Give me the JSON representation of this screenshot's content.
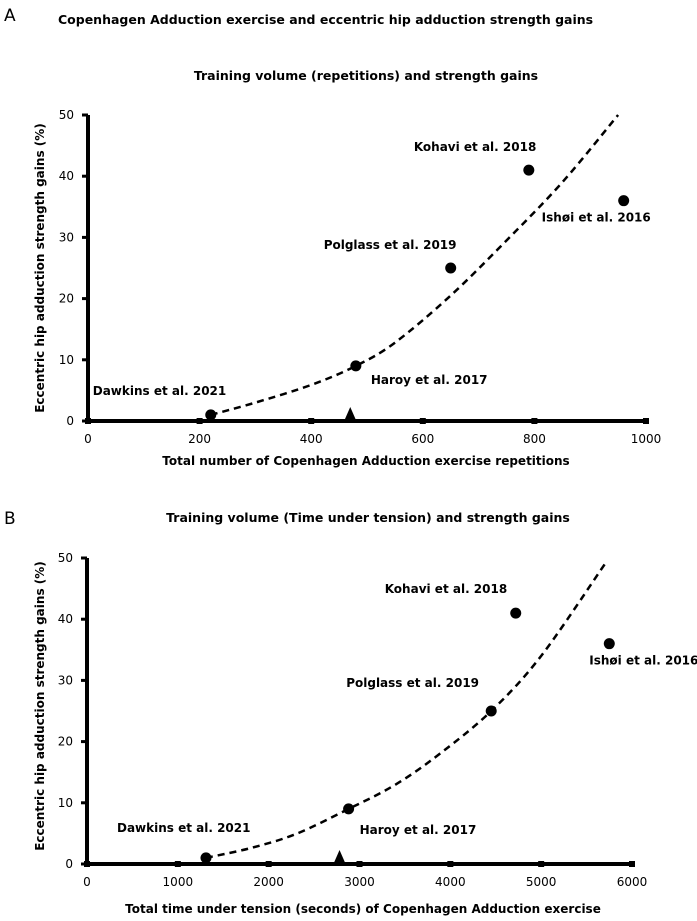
{
  "figure_title": "Copenhagen Adduction exercise and eccentric hip adduction strength gains",
  "chart_data": [
    {
      "type": "scatter",
      "panel_letter": "A",
      "title": "Training volume (repetitions) and strength gains",
      "xlabel": "Total number of Copenhagen Adduction exercise repetitions",
      "ylabel": "Eccentric hip adduction strength gains (%)",
      "xlim": [
        0,
        1000
      ],
      "ylim": [
        0,
        50
      ],
      "xticks": [
        0,
        200,
        400,
        600,
        800,
        1000
      ],
      "yticks": [
        0,
        10,
        20,
        30,
        40,
        50
      ],
      "grid": false,
      "points": [
        {
          "x": 220,
          "y": 1,
          "label": "Dawkins et al. 2021"
        },
        {
          "x": 480,
          "y": 9,
          "label": "Haroy et al. 2017"
        },
        {
          "x": 650,
          "y": 25,
          "label": "Polglass et al. 2019"
        },
        {
          "x": 790,
          "y": 41,
          "label": "Kohavi et al. 2018"
        },
        {
          "x": 960,
          "y": 36,
          "label": "Ishøi et al. 2016"
        }
      ],
      "marker": {
        "shape": "triangle",
        "x": 470,
        "y": 0
      },
      "trendline": {
        "style": "dashed",
        "x": [
          220,
          300,
          400,
          480,
          550,
          650,
          750,
          850,
          950
        ],
        "y": [
          1,
          3,
          5.9,
          9,
          12.8,
          20.5,
          29.5,
          39,
          50
        ]
      }
    },
    {
      "type": "scatter",
      "panel_letter": "B",
      "title": "Training volume (Time under tension) and strength gains",
      "xlabel": "Total time under tension (seconds) of Copenhagen Adduction exercise",
      "ylabel": "Eccentric hip adduction strength gains (%)",
      "xlim": [
        0,
        6000
      ],
      "ylim": [
        0,
        50
      ],
      "xticks": [
        0,
        1000,
        2000,
        3000,
        4000,
        5000,
        6000
      ],
      "yticks": [
        0,
        10,
        20,
        30,
        40,
        50
      ],
      "grid": false,
      "points": [
        {
          "x": 1310,
          "y": 1,
          "label": "Dawkins et al. 2021"
        },
        {
          "x": 2880,
          "y": 9,
          "label": "Haroy et al. 2017"
        },
        {
          "x": 4450,
          "y": 25,
          "label": "Polglass et al. 2019"
        },
        {
          "x": 4720,
          "y": 41,
          "label": "Kohavi et al. 2018"
        },
        {
          "x": 5750,
          "y": 36,
          "label": "Ishøi et al. 2016"
        }
      ],
      "marker": {
        "shape": "triangle",
        "x": 2780,
        "y": 0
      },
      "trendline": {
        "style": "dashed",
        "x": [
          1310,
          1800,
          2300,
          2880,
          3400,
          3900,
          4450,
          5000,
          5700
        ],
        "y": [
          1,
          2.6,
          4.9,
          9,
          13,
          18.2,
          25,
          34,
          49
        ]
      }
    }
  ]
}
